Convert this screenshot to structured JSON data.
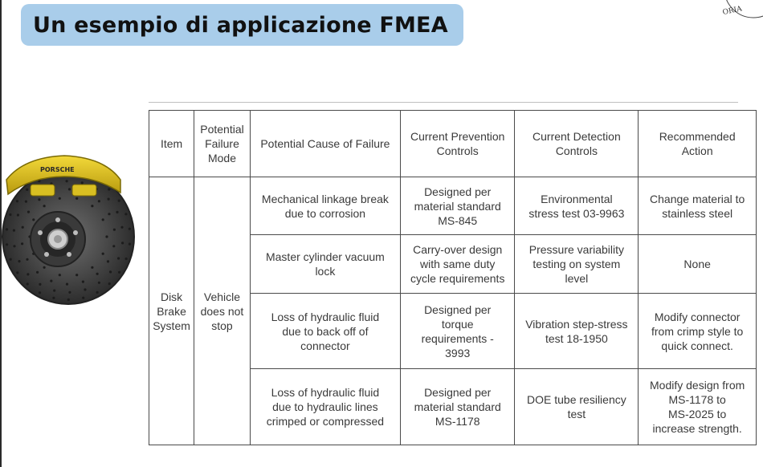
{
  "slide": {
    "title": "Un esempio di applicazione FMEA",
    "corner_stamp": "ORIA"
  },
  "image": {
    "caliper_logo_text": "PORSCHE"
  },
  "table": {
    "headers": [
      "Item",
      "Potential\nFailure\nMode",
      "Potential Cause of Failure",
      "Current Prevention\nControls",
      "Current Detection\nControls",
      "Recommended\nAction"
    ],
    "item": "Disk\nBrake\nSystem",
    "failure_mode": "Vehicle\ndoes not\nstop",
    "rows": [
      {
        "cause": "Mechanical linkage break\ndue to corrosion",
        "prevention": "Designed per\nmaterial standard\nMS-845",
        "detection": "Environmental\nstress test 03-9963",
        "action": "Change material to\nstainless steel"
      },
      {
        "cause": "Master cylinder vacuum\nlock",
        "prevention": "Carry-over design\nwith same duty\ncycle requirements",
        "detection": "Pressure variability\ntesting on system\nlevel",
        "action": "None"
      },
      {
        "cause": "Loss of hydraulic fluid\ndue to back off of\nconnector",
        "prevention": "Designed per\ntorque\nrequirements -\n3993",
        "detection": "Vibration step-stress\ntest 18-1950",
        "action": "Modify connector\nfrom crimp style to\nquick connect."
      },
      {
        "cause": "Loss of hydraulic fluid\ndue to hydraulic lines\ncrimped or compressed",
        "prevention": "Designed per\nmaterial standard\nMS-1178",
        "detection": "DOE tube resiliency\ntest",
        "action": "Modify design from\nMS-1178 to\nMS-2025 to\nincrease strength."
      }
    ]
  }
}
